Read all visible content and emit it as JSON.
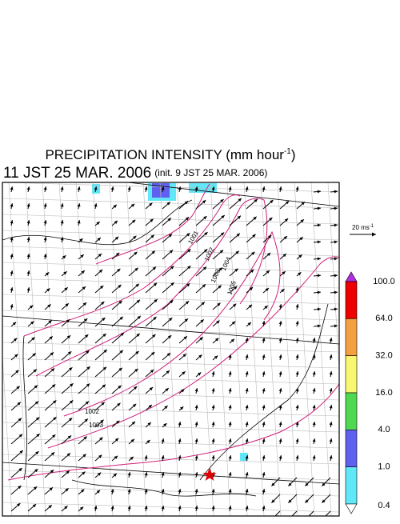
{
  "header": {
    "title": "PRECIPITATION INTENSITY (mm hour",
    "title_exponent": "-1",
    "title_close": ")",
    "valid_time": "11 JST 25 MAR. 2006",
    "init_time": "(init. 9 JST 25 MAR. 2006)"
  },
  "wind_scale": {
    "label": "20 ms",
    "exponent": "-1"
  },
  "legend": {
    "labels": [
      "100.0",
      "64.0",
      "32.0",
      "16.0",
      "4.0",
      "1.0",
      "0.4"
    ],
    "colors": [
      "#ee0000",
      "#f4a040",
      "#f8f870",
      "#50d850",
      "#6060f0",
      "#60e8f8"
    ],
    "over_color": "#b030e0",
    "under_color": "#ffffff"
  },
  "contours": {
    "labels": [
      "1001",
      "1002",
      "1003",
      "1004",
      "1005",
      "1002",
      "1003"
    ]
  }
}
